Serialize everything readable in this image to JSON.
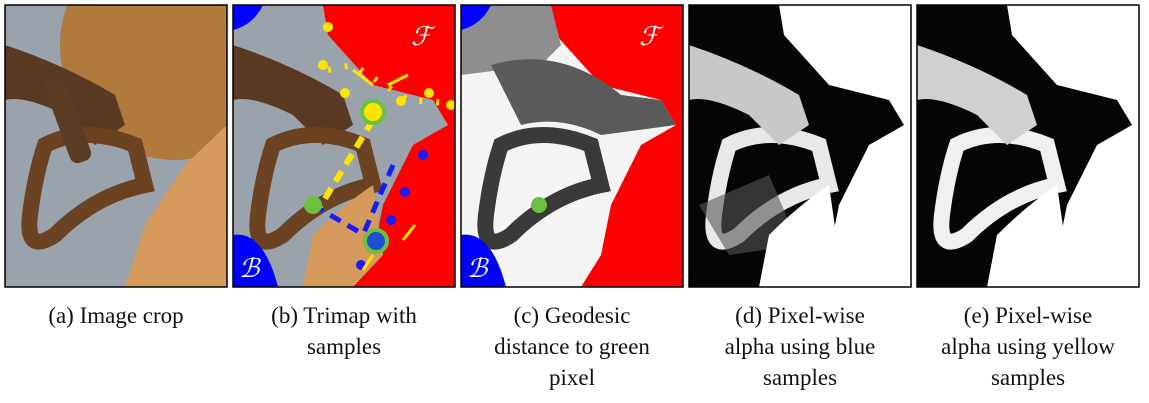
{
  "figure": {
    "panels": [
      {
        "caption": [
          "(a) Image crop"
        ]
      },
      {
        "caption": [
          "(b) Trimap with",
          "samples"
        ],
        "labels": [
          "ℱ",
          "ℬ"
        ]
      },
      {
        "caption": [
          "(c) Geodesic",
          "distance to green",
          "pixel"
        ],
        "labels": [
          "ℱ",
          "ℬ"
        ]
      },
      {
        "caption": [
          "(d) Pixel-wise",
          "alpha using blue",
          "samples"
        ]
      },
      {
        "caption": [
          "(e) Pixel-wise",
          "alpha using yellow",
          "samples"
        ]
      }
    ]
  }
}
